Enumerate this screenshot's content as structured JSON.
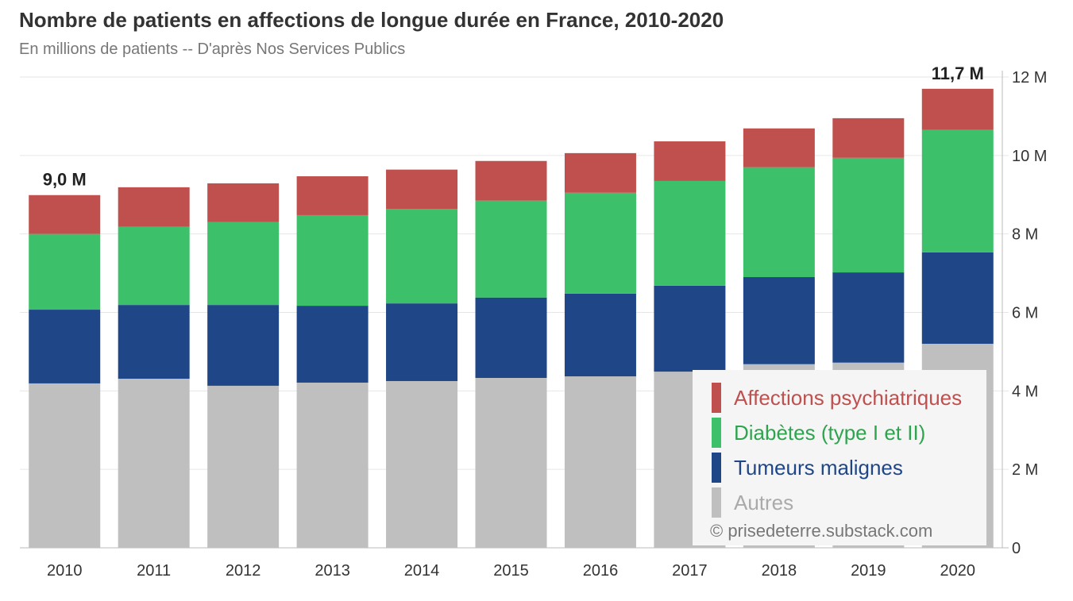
{
  "chart_data": {
    "type": "bar",
    "stacked": true,
    "title": "Nombre de patients en affections de longue durée en France, 2010-2020",
    "subtitle": "En millions de patients -- D'après Nos Services Publics",
    "categories": [
      "2010",
      "2011",
      "2012",
      "2013",
      "2014",
      "2015",
      "2016",
      "2017",
      "2018",
      "2019",
      "2020"
    ],
    "series": [
      {
        "name": "Autres",
        "color": "#bfbfbf",
        "values": [
          4.19,
          4.31,
          4.13,
          4.21,
          4.25,
          4.33,
          4.37,
          4.49,
          4.68,
          4.72,
          5.2
        ]
      },
      {
        "name": "Tumeurs malignes",
        "color": "#1f4788",
        "values": [
          1.88,
          1.88,
          2.06,
          1.96,
          1.98,
          2.05,
          2.11,
          2.19,
          2.22,
          2.3,
          2.33
        ]
      },
      {
        "name": "Diabètes (type I et II)",
        "color": "#3dc06a",
        "values": [
          1.93,
          1.99,
          2.11,
          2.31,
          2.41,
          2.47,
          2.57,
          2.67,
          2.8,
          2.92,
          3.12
        ]
      },
      {
        "name": "Affections psychiatriques",
        "color": "#c0504d",
        "values": [
          0.99,
          1.01,
          0.99,
          0.99,
          1.0,
          1.01,
          1.01,
          1.01,
          0.99,
          1.01,
          1.05
        ]
      }
    ],
    "legend_order": [
      "Affections psychiatriques",
      "Diabètes (type I et II)",
      "Tumeurs malignes",
      "Autres"
    ],
    "legend_text_colors": [
      "#c0504d",
      "#2ea44f",
      "#1f4788",
      "#aaaaaa"
    ],
    "annotations": [
      {
        "category": "2010",
        "text": "9,0 M"
      },
      {
        "category": "2020",
        "text": "11,7 M"
      }
    ],
    "yticks": [
      {
        "v": 0,
        "label": "0"
      },
      {
        "v": 2,
        "label": "2 M"
      },
      {
        "v": 4,
        "label": "4 M"
      },
      {
        "v": 6,
        "label": "6 M"
      },
      {
        "v": 8,
        "label": "8 M"
      },
      {
        "v": 10,
        "label": "10 M"
      },
      {
        "v": 12,
        "label": "12 M"
      }
    ],
    "ylim": [
      0,
      12
    ],
    "yaxis_position": "right",
    "legend_position": "bottom-right",
    "grid": true,
    "credit": "© prisedeterre.substack.com"
  }
}
